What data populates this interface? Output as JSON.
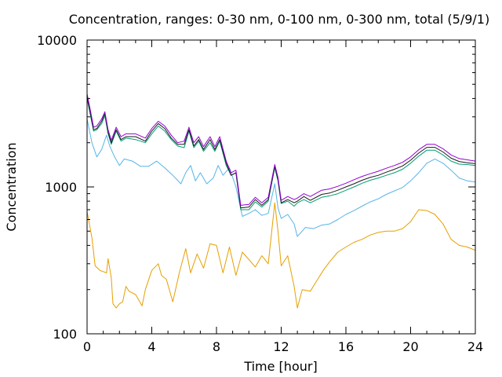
{
  "chart_data": {
    "type": "line",
    "title": "Concentration, ranges: 0-30 nm, 0-100 nm, 0-300 nm, total (5/9/1)",
    "xlabel": "Time [hour]",
    "ylabel": "Concentration",
    "x_range": [
      0,
      24
    ],
    "y_range": [
      100,
      10000
    ],
    "y_scale": "log",
    "grid": false,
    "legend": "none",
    "x_ticks": [
      0,
      4,
      8,
      12,
      16,
      20,
      24
    ],
    "x_tick_labels": [
      "0",
      "4",
      "8",
      "12",
      "16",
      "20",
      "24"
    ],
    "y_ticks": [
      100,
      1000,
      10000
    ],
    "y_tick_labels": [
      "100",
      "1000",
      "10000"
    ],
    "series": [
      {
        "color": "#e69f00",
        "x": [
          0,
          0.3,
          0.5,
          0.8,
          1.2,
          1.3,
          1.5,
          1.6,
          1.8,
          2.0,
          2.2,
          2.4,
          2.6,
          3.0,
          3.4,
          3.6,
          4.0,
          4.4,
          4.6,
          4.9,
          5.3,
          5.7,
          6.1,
          6.4,
          6.8,
          7.2,
          7.6,
          8.0,
          8.4,
          8.8,
          9.2,
          9.6,
          10.0,
          10.4,
          10.8,
          11.2,
          11.4,
          11.6,
          11.8,
          12.0,
          12.4,
          12.8,
          13.0,
          13.3,
          13.8,
          14.2,
          14.6,
          15.0,
          15.5,
          16.0,
          16.5,
          17.0,
          17.5,
          18.0,
          18.5,
          19.0,
          19.5,
          20.0,
          20.5,
          21.0,
          21.5,
          22.0,
          22.5,
          23.0,
          23.5,
          24.0
        ],
        "values": [
          680,
          450,
          290,
          270,
          260,
          325,
          240,
          160,
          150,
          160,
          165,
          210,
          195,
          185,
          155,
          200,
          270,
          300,
          250,
          235,
          165,
          260,
          380,
          260,
          350,
          280,
          410,
          400,
          260,
          390,
          250,
          360,
          320,
          285,
          340,
          300,
          480,
          780,
          500,
          290,
          340,
          210,
          150,
          200,
          195,
          230,
          270,
          310,
          360,
          390,
          420,
          440,
          470,
          490,
          500,
          500,
          520,
          580,
          700,
          690,
          650,
          560,
          440,
          400,
          390,
          370
        ]
      },
      {
        "color": "#56b4e9",
        "x": [
          0,
          0.3,
          0.6,
          0.9,
          1.2,
          1.4,
          1.7,
          2.0,
          2.3,
          2.8,
          3.3,
          3.8,
          4.3,
          4.8,
          5.3,
          5.8,
          6.1,
          6.4,
          6.7,
          7.0,
          7.4,
          7.8,
          8.1,
          8.4,
          8.8,
          9.2,
          9.6,
          10.0,
          10.4,
          10.8,
          11.2,
          11.6,
          11.8,
          12.0,
          12.4,
          12.8,
          13.0,
          13.5,
          14.0,
          14.5,
          15.0,
          15.5,
          16.0,
          16.5,
          17.0,
          17.5,
          18.0,
          18.5,
          19.0,
          19.5,
          20.0,
          20.5,
          21.0,
          21.5,
          22.0,
          22.5,
          23.0,
          23.5,
          24.0
        ],
        "values": [
          2900,
          2000,
          1600,
          1800,
          2250,
          1900,
          1600,
          1400,
          1550,
          1500,
          1380,
          1380,
          1500,
          1350,
          1200,
          1050,
          1250,
          1400,
          1100,
          1250,
          1050,
          1150,
          1400,
          1200,
          1350,
          1000,
          630,
          660,
          700,
          640,
          660,
          1050,
          720,
          610,
          650,
          560,
          460,
          530,
          520,
          550,
          560,
          600,
          650,
          690,
          740,
          790,
          830,
          890,
          940,
          990,
          1100,
          1250,
          1450,
          1550,
          1450,
          1300,
          1150,
          1100,
          1080
        ]
      },
      {
        "color": "#009e73",
        "x": [
          0,
          0.2,
          0.4,
          0.6,
          0.9,
          1.1,
          1.3,
          1.5,
          1.8,
          2.1,
          2.4,
          3.0,
          3.6,
          4.0,
          4.4,
          4.8,
          5.2,
          5.6,
          6.0,
          6.3,
          6.6,
          6.9,
          7.2,
          7.6,
          7.9,
          8.2,
          8.6,
          8.9,
          9.2,
          9.5,
          10.0,
          10.4,
          10.8,
          11.2,
          11.6,
          11.8,
          12.0,
          12.4,
          12.8,
          13.0,
          13.4,
          13.8,
          14.5,
          15.0,
          15.5,
          16.0,
          16.5,
          17.0,
          17.5,
          18.0,
          18.5,
          19.0,
          19.5,
          20.0,
          20.5,
          21.0,
          21.5,
          22.0,
          22.5,
          23.0,
          23.5,
          24.0
        ],
        "values": [
          4000,
          3100,
          2400,
          2450,
          2700,
          3050,
          2300,
          1950,
          2400,
          2050,
          2150,
          2100,
          2000,
          2300,
          2600,
          2400,
          2100,
          1900,
          1850,
          2400,
          1850,
          2050,
          1750,
          2000,
          1750,
          2050,
          1400,
          1200,
          1250,
          700,
          700,
          790,
          730,
          800,
          1350,
          1100,
          770,
          800,
          740,
          780,
          820,
          780,
          850,
          870,
          900,
          950,
          1000,
          1060,
          1110,
          1150,
          1200,
          1250,
          1320,
          1450,
          1620,
          1780,
          1780,
          1650,
          1500,
          1430,
          1420,
          1400
        ]
      },
      {
        "color": "#1a1a1a",
        "x": [
          0,
          0.2,
          0.4,
          0.6,
          0.9,
          1.1,
          1.3,
          1.5,
          1.8,
          2.1,
          2.4,
          3.0,
          3.6,
          4.0,
          4.4,
          4.8,
          5.2,
          5.6,
          6.0,
          6.3,
          6.6,
          6.9,
          7.2,
          7.6,
          7.9,
          8.2,
          8.6,
          8.9,
          9.2,
          9.5,
          10.0,
          10.4,
          10.8,
          11.2,
          11.6,
          11.8,
          12.0,
          12.4,
          12.8,
          13.0,
          13.4,
          13.8,
          14.5,
          15.0,
          15.5,
          16.0,
          16.5,
          17.0,
          17.5,
          18.0,
          18.5,
          19.0,
          19.5,
          20.0,
          20.5,
          21.0,
          21.5,
          22.0,
          22.5,
          23.0,
          23.5,
          24.0
        ],
        "values": [
          4100,
          3200,
          2450,
          2500,
          2800,
          3150,
          2350,
          2000,
          2450,
          2100,
          2200,
          2200,
          2050,
          2400,
          2700,
          2500,
          2150,
          1950,
          1950,
          2450,
          1900,
          2100,
          1800,
          2100,
          1800,
          2100,
          1450,
          1200,
          1250,
          720,
          730,
          820,
          750,
          820,
          1380,
          1120,
          780,
          820,
          780,
          800,
          860,
          810,
          890,
          910,
          950,
          1000,
          1050,
          1110,
          1160,
          1200,
          1260,
          1320,
          1390,
          1520,
          1700,
          1860,
          1860,
          1730,
          1570,
          1490,
          1460,
          1440
        ]
      },
      {
        "color": "#9400d3",
        "x": [
          0,
          0.2,
          0.4,
          0.6,
          0.9,
          1.1,
          1.3,
          1.5,
          1.8,
          2.1,
          2.4,
          3.0,
          3.6,
          4.0,
          4.4,
          4.8,
          5.2,
          5.6,
          6.0,
          6.3,
          6.6,
          6.9,
          7.2,
          7.6,
          7.9,
          8.2,
          8.6,
          8.9,
          9.2,
          9.5,
          10.0,
          10.4,
          10.8,
          11.2,
          11.6,
          11.8,
          12.0,
          12.4,
          12.8,
          13.0,
          13.4,
          13.8,
          14.5,
          15.0,
          15.5,
          16.0,
          16.5,
          17.0,
          17.5,
          18.0,
          18.5,
          19.0,
          19.5,
          20.0,
          20.5,
          21.0,
          21.5,
          22.0,
          22.5,
          23.0,
          23.5,
          24.0
        ],
        "values": [
          4300,
          3350,
          2550,
          2600,
          2900,
          3250,
          2450,
          2080,
          2550,
          2200,
          2300,
          2300,
          2150,
          2500,
          2800,
          2600,
          2250,
          2000,
          2050,
          2550,
          2000,
          2200,
          1880,
          2200,
          1880,
          2200,
          1500,
          1250,
          1300,
          750,
          760,
          850,
          780,
          850,
          1420,
          1160,
          810,
          860,
          820,
          840,
          900,
          860,
          950,
          970,
          1010,
          1060,
          1120,
          1180,
          1230,
          1280,
          1340,
          1400,
          1470,
          1600,
          1790,
          1950,
          1950,
          1820,
          1650,
          1560,
          1530,
          1500
        ]
      }
    ]
  }
}
